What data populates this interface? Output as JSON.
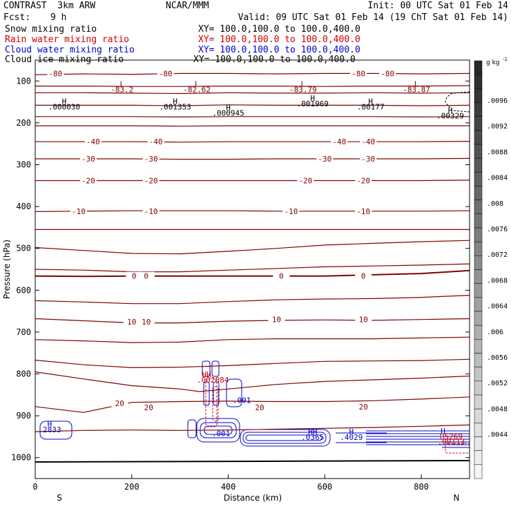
{
  "header": {
    "model": "CONTRAST  3km ARW",
    "center": "NCAR/MMM",
    "init": "Init: 00 UTC Sat 01 Feb 14",
    "fcst_label": "Fcst:",
    "fcst_value": "9 h",
    "valid": "Valid: 09 UTC Sat 01 Feb 14 (19 ChT Sat 01 Feb 14)"
  },
  "fields": [
    {
      "name": "Snow mixing ratio",
      "xy": "XY= 100.0,100.0 to 100.0,400.0",
      "color": "#000000"
    },
    {
      "name": "Rain water mixing ratio",
      "xy": "XY= 100.0,100.0 to 100.0,400.0",
      "color": "#cc0000"
    },
    {
      "name": "Cloud water mixing ratio",
      "xy": "XY= 100.0,100.0 to 100.0,400.0",
      "color": "#0000cc"
    },
    {
      "name": "Cloud ice mixing ratio",
      "xy": "XY= 100.0,100.0 to 100.0,400.0",
      "color": "#000000"
    }
  ],
  "colorbar": {
    "unit": "g kg",
    "unit_exp": "-1",
    "labels": [
      ".0096",
      ".0092",
      ".0088",
      ".0084",
      ".008",
      ".0076",
      ".0072",
      ".0068",
      ".0064",
      ".006",
      ".0056",
      ".0052",
      ".0048",
      ".0044"
    ]
  },
  "chart_data": {
    "type": "line",
    "xlabel": "Distance (km)",
    "ylabel": "Pressure (hPa)",
    "x_ticks": [
      0,
      200,
      400,
      600,
      800
    ],
    "x_tick_labels": [
      "0",
      "200",
      "400",
      "600",
      "800"
    ],
    "xlim": [
      0,
      900
    ],
    "y_ticks": [
      100,
      200,
      300,
      400,
      500,
      600,
      700,
      800,
      900,
      1000
    ],
    "y_tick_labels": [
      "100",
      "200",
      "300",
      "400",
      "500",
      "600",
      "700",
      "800",
      "900",
      "1000"
    ],
    "ylim": [
      50,
      1050
    ],
    "end_labels": {
      "left": "S",
      "right": "N"
    },
    "temperature_contours": [
      {
        "level": -80,
        "x": [
          0,
          100,
          200,
          300,
          400,
          500,
          600,
          700,
          800,
          900
        ],
        "p": [
          85,
          83,
          84,
          82,
          82,
          83,
          82,
          82,
          83,
          82
        ]
      },
      {
        "level": -80,
        "x": [
          0,
          100,
          200,
          300,
          400,
          500,
          600,
          700,
          800,
          900
        ],
        "p": [
          112,
          112,
          113,
          113,
          112,
          112,
          113,
          112,
          112,
          111
        ]
      },
      {
        "level": -80,
        "x": [
          0,
          100,
          200,
          300,
          400,
          500,
          600,
          700,
          800,
          900
        ],
        "p": [
          128,
          128,
          129,
          130,
          128,
          129,
          129,
          128,
          129,
          128
        ]
      },
      {
        "level": -70,
        "x": [
          0,
          100,
          200,
          300,
          400,
          500,
          600,
          700,
          800,
          900
        ],
        "p": [
          158,
          158,
          158,
          159,
          157,
          158,
          158,
          158,
          159,
          158
        ]
      },
      {
        "level": -60,
        "x": [
          0,
          100,
          200,
          300,
          400,
          500,
          600,
          700,
          800,
          900
        ],
        "p": [
          185,
          185,
          185,
          186,
          185,
          185,
          185,
          185,
          186,
          185
        ]
      },
      {
        "level": -50,
        "x": [
          0,
          100,
          200,
          300,
          400,
          500,
          600,
          700,
          800,
          900
        ],
        "p": [
          207,
          207,
          207,
          208,
          207,
          207,
          207,
          207,
          207,
          207
        ]
      },
      {
        "level": -40,
        "x": [
          0,
          100,
          200,
          300,
          400,
          500,
          600,
          700,
          800,
          900
        ],
        "p": [
          245,
          245,
          245,
          246,
          245,
          245,
          245,
          245,
          245,
          244
        ]
      },
      {
        "level": -30,
        "x": [
          0,
          100,
          200,
          300,
          400,
          500,
          600,
          700,
          800,
          900
        ],
        "p": [
          286,
          286,
          286,
          287,
          287,
          286,
          286,
          286,
          286,
          285
        ]
      },
      {
        "level": -20,
        "x": [
          0,
          100,
          200,
          300,
          400,
          500,
          600,
          700,
          800,
          900
        ],
        "p": [
          338,
          338,
          338,
          338,
          338,
          338,
          338,
          338,
          338,
          337
        ]
      },
      {
        "level": -10,
        "x": [
          0,
          100,
          200,
          300,
          400,
          500,
          600,
          700,
          800,
          900
        ],
        "p": [
          412,
          411,
          410,
          410,
          410,
          411,
          411,
          411,
          411,
          410
        ]
      },
      {
        "level": 0,
        "x": [
          0,
          100,
          200,
          300,
          400,
          500,
          600,
          700,
          800,
          900
        ],
        "p": [
          455,
          455,
          455,
          455,
          455,
          455,
          455,
          455,
          455,
          455
        ]
      },
      {
        "level": 0,
        "x": [
          0,
          100,
          200,
          300,
          400,
          500,
          600,
          700,
          800,
          900
        ],
        "p": [
          498,
          505,
          512,
          513,
          507,
          500,
          492,
          488,
          484,
          481
        ]
      },
      {
        "level": 0,
        "x": [
          0,
          100,
          200,
          300,
          400,
          500,
          600,
          700,
          800,
          900
        ],
        "p": [
          550,
          552,
          556,
          556,
          552,
          548,
          544,
          542,
          540,
          537
        ]
      },
      {
        "level": 0,
        "x": [
          0,
          100,
          200,
          300,
          400,
          500,
          600,
          700,
          800,
          900
        ],
        "p": [
          566,
          567,
          566,
          566,
          566,
          566,
          566,
          563,
          560,
          553
        ],
        "bold": true
      },
      {
        "level": 0,
        "x": [
          0,
          100,
          200,
          300,
          400,
          500,
          600,
          700,
          800,
          900
        ],
        "p": [
          625,
          628,
          632,
          632,
          627,
          623,
          621,
          620,
          617,
          612
        ]
      },
      {
        "level": 10,
        "x": [
          0,
          100,
          200,
          300,
          400,
          500,
          600,
          700,
          800,
          900
        ],
        "p": [
          668,
          673,
          678,
          678,
          674,
          672,
          671,
          672,
          670,
          668
        ]
      },
      {
        "level": 10,
        "x": [
          0,
          100,
          200,
          300,
          400,
          500,
          600,
          700,
          800,
          900
        ],
        "p": [
          718,
          721,
          725,
          724,
          718,
          716,
          716,
          716,
          714,
          712
        ]
      },
      {
        "level": 10,
        "x": [
          0,
          100,
          200,
          300,
          400,
          500,
          600,
          700,
          800,
          900
        ],
        "p": [
          767,
          778,
          785,
          784,
          780,
          775,
          770,
          769,
          768,
          765
        ]
      },
      {
        "level": 10,
        "x": [
          0,
          100,
          200,
          300,
          340,
          400,
          500,
          600,
          700,
          800,
          900
        ],
        "p": [
          795,
          812,
          828,
          836,
          842,
          836,
          825,
          818,
          814,
          810,
          805
        ]
      },
      {
        "level": 20,
        "x": [
          0,
          100,
          200,
          300,
          400,
          500,
          600,
          700,
          800,
          900
        ],
        "p": [
          878,
          892,
          868,
          866,
          865,
          866,
          866,
          864,
          860,
          855
        ]
      },
      {
        "level": 20,
        "x": [
          0,
          100,
          200,
          300,
          400,
          500,
          600,
          700,
          800,
          900
        ],
        "p": [
          938,
          935,
          934,
          935,
          934,
          932,
          930,
          928,
          925,
          922
        ]
      }
    ],
    "temperature_labels": [
      {
        "text": "-80",
        "x": 42,
        "p": 82
      },
      {
        "text": "-80",
        "x": 270,
        "p": 82
      },
      {
        "text": "-80",
        "x": 670,
        "p": 82
      },
      {
        "text": "-80",
        "x": 730,
        "p": 82
      },
      {
        "text": "-40",
        "x": 120,
        "p": 245
      },
      {
        "text": "-40",
        "x": 250,
        "p": 245
      },
      {
        "text": "-40",
        "x": 630,
        "p": 245
      },
      {
        "text": "-40",
        "x": 690,
        "p": 245
      },
      {
        "text": "-30",
        "x": 110,
        "p": 286
      },
      {
        "text": "-30",
        "x": 240,
        "p": 286
      },
      {
        "text": "-30",
        "x": 600,
        "p": 286
      },
      {
        "text": "-30",
        "x": 690,
        "p": 286
      },
      {
        "text": "-20",
        "x": 110,
        "p": 338
      },
      {
        "text": "-20",
        "x": 240,
        "p": 338
      },
      {
        "text": "-20",
        "x": 560,
        "p": 338
      },
      {
        "text": "-20",
        "x": 680,
        "p": 338
      },
      {
        "text": "-10",
        "x": 90,
        "p": 411
      },
      {
        "text": "-10",
        "x": 240,
        "p": 411
      },
      {
        "text": "-10",
        "x": 530,
        "p": 411
      },
      {
        "text": "-10",
        "x": 680,
        "p": 411
      },
      {
        "text": "0",
        "x": 205,
        "p": 566
      },
      {
        "text": "0",
        "x": 230,
        "p": 566
      },
      {
        "text": "0",
        "x": 510,
        "p": 566
      },
      {
        "text": "0",
        "x": 680,
        "p": 566
      },
      {
        "text": "10",
        "x": 200,
        "p": 675
      },
      {
        "text": "10",
        "x": 230,
        "p": 675
      },
      {
        "text": "10",
        "x": 500,
        "p": 670
      },
      {
        "text": "10",
        "x": 680,
        "p": 670
      },
      {
        "text": "20",
        "x": 175,
        "p": 870
      },
      {
        "text": "20",
        "x": 235,
        "p": 880
      },
      {
        "text": "20",
        "x": 465,
        "p": 880
      },
      {
        "text": "20",
        "x": 680,
        "p": 878
      }
    ],
    "extrema_labels": [
      {
        "text": "L",
        "x": 180,
        "p": 107,
        "color": "#800000"
      },
      {
        "text": "-83.2",
        "x": 180,
        "p": 120,
        "color": "#800000"
      },
      {
        "text": "L",
        "x": 335,
        "p": 107,
        "color": "#800000"
      },
      {
        "text": "-82.62",
        "x": 335,
        "p": 120,
        "color": "#800000"
      },
      {
        "text": "L",
        "x": 555,
        "p": 107,
        "color": "#800000"
      },
      {
        "text": "-83.79",
        "x": 555,
        "p": 120,
        "color": "#800000"
      },
      {
        "text": "L",
        "x": 790,
        "p": 107,
        "color": "#800000"
      },
      {
        "text": "-83.87",
        "x": 790,
        "p": 120,
        "color": "#800000"
      },
      {
        "text": "H",
        "x": 60,
        "p": 148,
        "color": "#000000"
      },
      {
        "text": ".000030",
        "x": 60,
        "p": 161,
        "color": "#000000"
      },
      {
        "text": "H",
        "x": 290,
        "p": 148,
        "color": "#000000"
      },
      {
        "text": ".001353",
        "x": 290,
        "p": 161,
        "color": "#000000"
      },
      {
        "text": "H",
        "x": 400,
        "p": 163,
        "color": "#000000"
      },
      {
        "text": ".000945",
        "x": 400,
        "p": 176,
        "color": "#000000"
      },
      {
        "text": "H",
        "x": 575,
        "p": 141,
        "color": "#000000"
      },
      {
        "text": ".001969",
        "x": 575,
        "p": 154,
        "color": "#000000"
      },
      {
        "text": "H",
        "x": 695,
        "p": 148,
        "color": "#000000"
      },
      {
        "text": ".00177",
        "x": 695,
        "p": 161,
        "color": "#000000"
      },
      {
        "text": "H",
        "x": 860,
        "p": 170,
        "color": "#000000"
      },
      {
        "text": ".00329",
        "x": 860,
        "p": 183,
        "color": "#000000"
      },
      {
        "text": "H",
        "x": 30,
        "p": 920,
        "color": "#0000cc"
      },
      {
        "text": ".2833",
        "x": 30,
        "p": 933,
        "color": "#0000cc"
      },
      {
        "text": ".001",
        "x": 428,
        "p": 863,
        "color": "#0000cc"
      },
      {
        "text": ".001",
        "x": 385,
        "p": 942,
        "color": "#0000cc"
      },
      {
        "text": "HH",
        "x": 355,
        "p": 801,
        "color": "#cc0000"
      },
      {
        "text": ".002084",
        "x": 368,
        "p": 814,
        "color": "#cc0000"
      },
      {
        "text": "HH",
        "x": 575,
        "p": 938,
        "color": "#0000cc"
      },
      {
        "text": ".0365",
        "x": 575,
        "p": 951,
        "color": "#0000cc"
      },
      {
        "text": "H",
        "x": 655,
        "p": 938,
        "color": "#0000cc"
      },
      {
        "text": ".4029",
        "x": 655,
        "p": 951,
        "color": "#0000cc"
      },
      {
        "text": "H",
        "x": 845,
        "p": 936,
        "color": "#0000cc"
      },
      {
        "text": "H5269",
        "x": 862,
        "p": 949,
        "color": "#cc0000"
      },
      {
        "text": ".00113",
        "x": 862,
        "p": 962,
        "color": "#cc0000"
      }
    ]
  }
}
